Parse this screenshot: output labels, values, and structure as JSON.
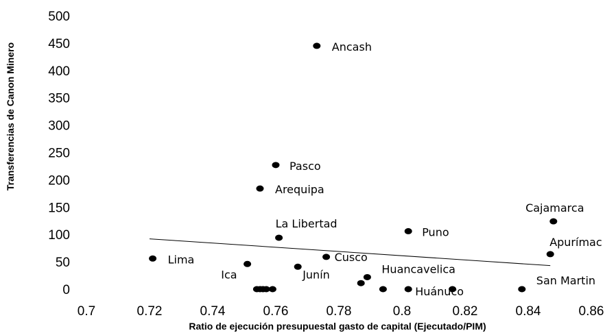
{
  "chart_data": {
    "type": "scatter",
    "xlabel": "Ratio de ejecución presupuestal gasto de capital (Ejecutado/PIM)",
    "ylabel": "Transferencias de Canon Minero",
    "xlim": [
      0.7,
      0.86
    ],
    "ylim": [
      0,
      500
    ],
    "x_ticks": [
      "0.7",
      "0.72",
      "0.74",
      "0.76",
      "0.78",
      "0.8",
      "0.82",
      "0.84",
      "0.86"
    ],
    "y_ticks": [
      "0",
      "50",
      "100",
      "150",
      "200",
      "250",
      "300",
      "350",
      "400",
      "450",
      "500"
    ],
    "grid": false,
    "legend": "none",
    "trendline": {
      "x": [
        0.72,
        0.847
      ],
      "y": [
        92,
        43
      ]
    },
    "points": [
      {
        "x": 0.773,
        "y": 445,
        "label": "Ancash"
      },
      {
        "x": 0.76,
        "y": 227,
        "label": "Pasco"
      },
      {
        "x": 0.755,
        "y": 184,
        "label": "Arequipa"
      },
      {
        "x": 0.848,
        "y": 124,
        "label": "Cajamarca"
      },
      {
        "x": 0.802,
        "y": 106,
        "label": "Puno"
      },
      {
        "x": 0.761,
        "y": 94,
        "label": "La Libertad"
      },
      {
        "x": 0.847,
        "y": 64,
        "label": "Apurímac"
      },
      {
        "x": 0.721,
        "y": 56,
        "label": "Lima"
      },
      {
        "x": 0.776,
        "y": 59,
        "label": "Cusco"
      },
      {
        "x": 0.751,
        "y": 46,
        "label": "Ica"
      },
      {
        "x": 0.767,
        "y": 41,
        "label": "Junín"
      },
      {
        "x": 0.789,
        "y": 22,
        "label": "Huancavelica"
      },
      {
        "x": 0.787,
        "y": 11,
        "label": ""
      },
      {
        "x": 0.794,
        "y": 0,
        "label": ""
      },
      {
        "x": 0.802,
        "y": 0,
        "label": "Huánuco"
      },
      {
        "x": 0.816,
        "y": 0,
        "label": ""
      },
      {
        "x": 0.838,
        "y": 0,
        "label": "San Martin"
      },
      {
        "x": 0.754,
        "y": 0,
        "label": ""
      },
      {
        "x": 0.755,
        "y": 0,
        "label": ""
      },
      {
        "x": 0.756,
        "y": 0,
        "label": ""
      },
      {
        "x": 0.757,
        "y": 0,
        "label": ""
      },
      {
        "x": 0.759,
        "y": 0,
        "label": ""
      }
    ]
  }
}
